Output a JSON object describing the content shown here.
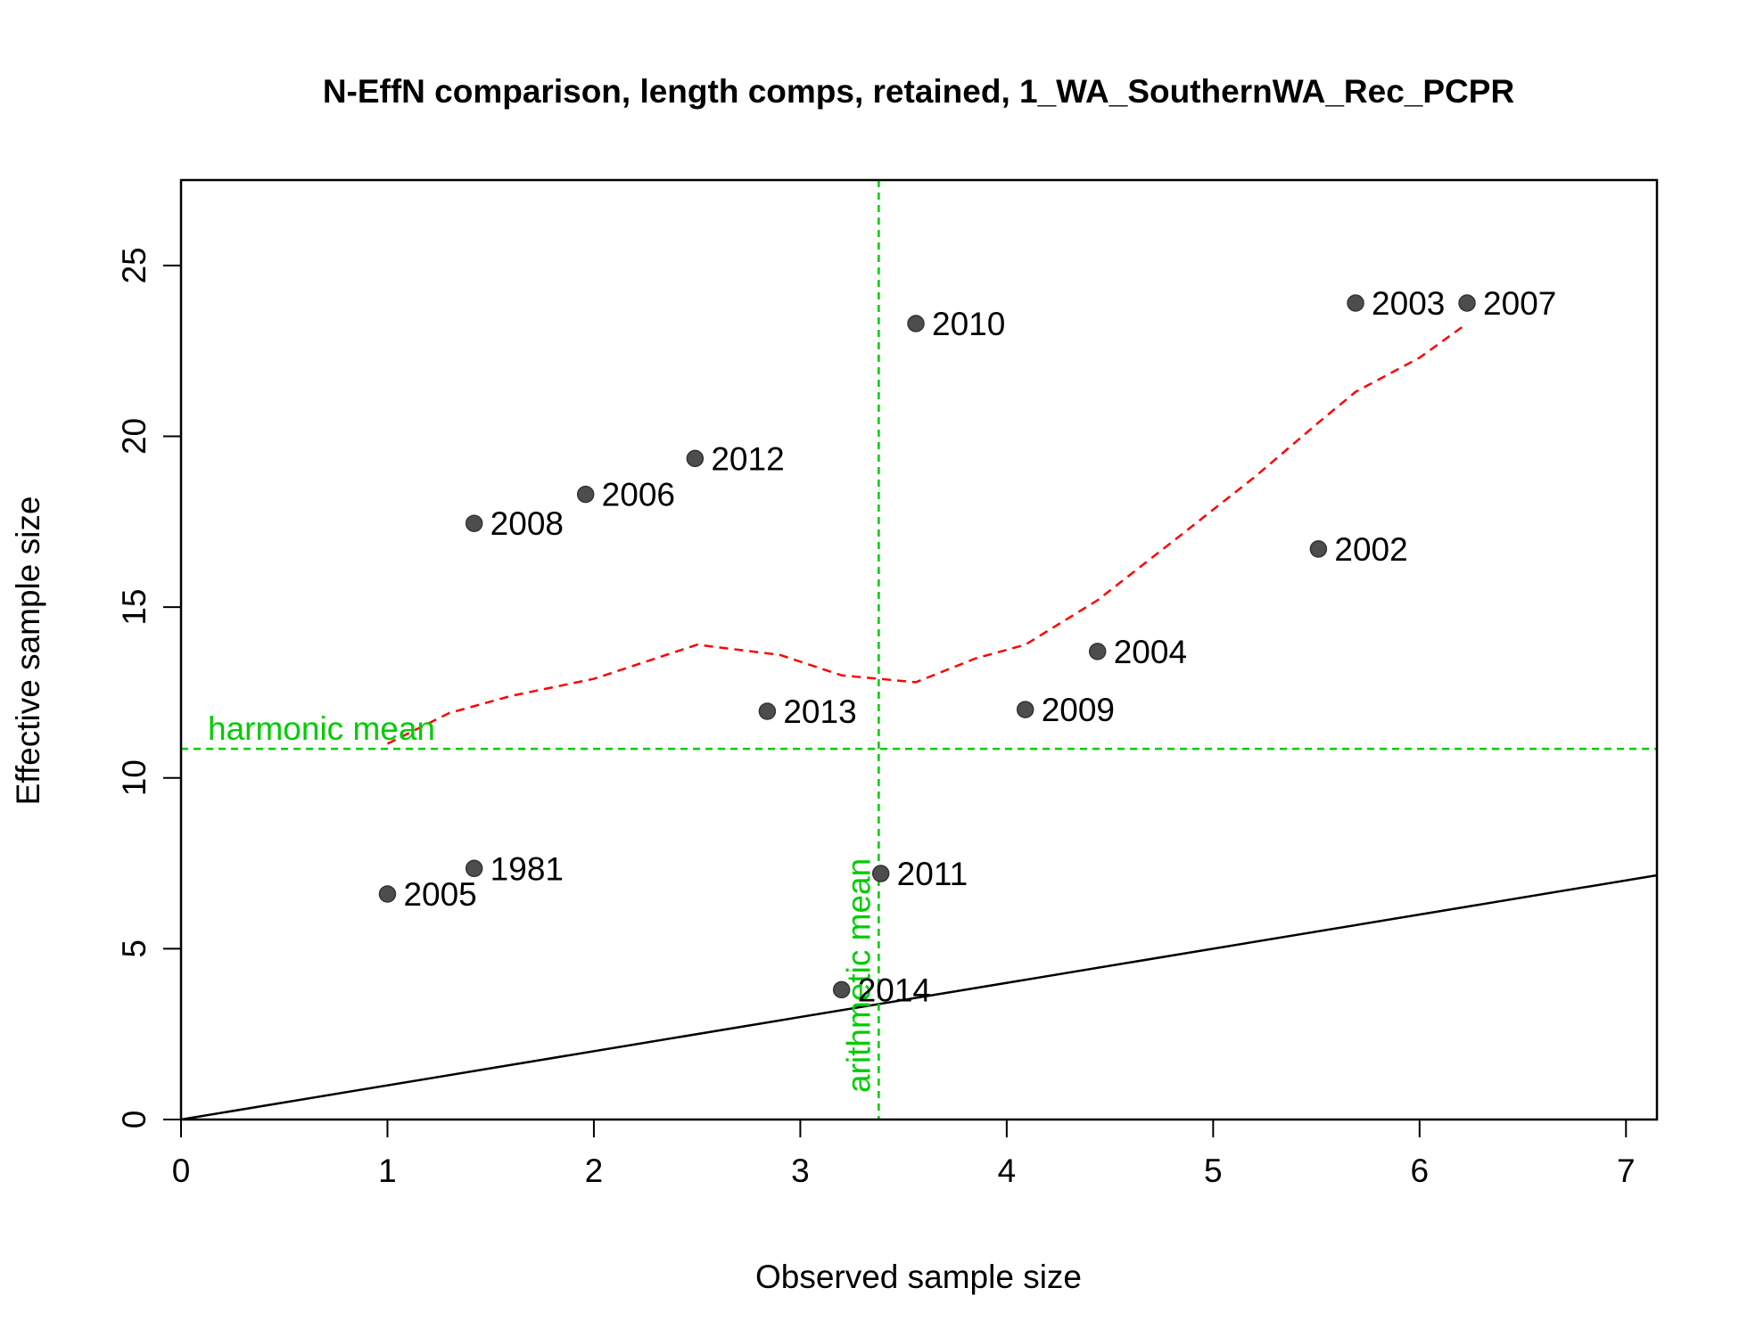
{
  "chart_data": {
    "type": "scatter",
    "title": "N-EffN comparison, length comps, retained, 1_WA_SouthernWA_Rec_PCPR",
    "xlabel": "Observed sample size",
    "ylabel": "Effective sample size",
    "xlim": [
      0,
      7.15
    ],
    "ylim": [
      0,
      27.5
    ],
    "x_ticks": [
      0,
      1,
      2,
      3,
      4,
      5,
      6,
      7
    ],
    "y_ticks": [
      0,
      5,
      10,
      15,
      20,
      25
    ],
    "grid": false,
    "points": [
      {
        "label": "1981",
        "x": 1.42,
        "y": 7.35
      },
      {
        "label": "2002",
        "x": 5.51,
        "y": 16.7
      },
      {
        "label": "2003",
        "x": 5.69,
        "y": 23.9
      },
      {
        "label": "2004",
        "x": 4.44,
        "y": 13.7
      },
      {
        "label": "2005",
        "x": 1.0,
        "y": 6.6
      },
      {
        "label": "2006",
        "x": 1.96,
        "y": 18.3
      },
      {
        "label": "2007",
        "x": 6.23,
        "y": 23.9
      },
      {
        "label": "2008",
        "x": 1.42,
        "y": 17.45
      },
      {
        "label": "2009",
        "x": 4.09,
        "y": 12.0
      },
      {
        "label": "2010",
        "x": 3.56,
        "y": 23.3
      },
      {
        "label": "2011",
        "x": 3.39,
        "y": 7.2
      },
      {
        "label": "2012",
        "x": 2.49,
        "y": 19.35
      },
      {
        "label": "2013",
        "x": 2.84,
        "y": 11.95
      },
      {
        "label": "2014",
        "x": 3.2,
        "y": 3.8
      }
    ],
    "smoother": {
      "color": "#ff0000",
      "x": [
        1.0,
        1.3,
        1.6,
        2.0,
        2.5,
        2.9,
        3.2,
        3.56,
        3.85,
        4.09,
        4.44,
        4.8,
        5.2,
        5.51,
        5.69,
        6.0,
        6.23
      ],
      "y": [
        11.0,
        11.9,
        12.4,
        12.9,
        13.9,
        13.6,
        13.0,
        12.8,
        13.5,
        13.9,
        15.2,
        16.9,
        18.8,
        20.4,
        21.3,
        22.3,
        23.3
      ]
    },
    "identity_line": {
      "color": "#000000"
    },
    "reference_lines": {
      "color": "#00cc00",
      "harmonic_mean": {
        "label": "harmonic mean",
        "y": 10.85
      },
      "arithmetic_mean": {
        "label": "arithmetic mean",
        "x": 3.38
      }
    },
    "point_color": "#4d4d4d"
  }
}
